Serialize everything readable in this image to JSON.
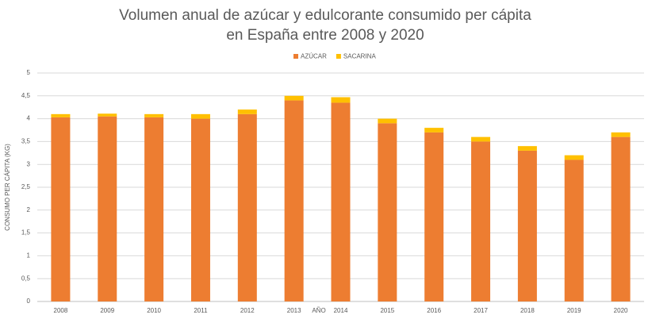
{
  "chart_data": {
    "type": "stacked-bar",
    "title": [
      "Volumen anual de azúcar y edulcorante consumido per cápita",
      "en España entre 2008 y 2020"
    ],
    "x_label": "AÑO",
    "y_label": "CONSUMO PER CÁPITA (KG)",
    "categories": [
      "2008",
      "2009",
      "2010",
      "2011",
      "2012",
      "2013",
      "2014",
      "2015",
      "2016",
      "2017",
      "2018",
      "2019",
      "2020"
    ],
    "series": [
      {
        "name": "AZÚCAR",
        "color": "#ed7d31",
        "values": [
          4.03,
          4.05,
          4.03,
          4.0,
          4.1,
          4.4,
          4.35,
          3.9,
          3.7,
          3.5,
          3.3,
          3.1,
          3.6
        ]
      },
      {
        "name": "SACARINA",
        "color": "#ffc000",
        "values": [
          0.07,
          0.06,
          0.07,
          0.1,
          0.1,
          0.1,
          0.12,
          0.1,
          0.1,
          0.1,
          0.1,
          0.1,
          0.1
        ]
      }
    ],
    "ylim": [
      0,
      5
    ],
    "yticks": [
      0,
      {
        "value": 0.5,
        "label": "0,5"
      },
      1,
      {
        "value": 1.5,
        "label": "1,5"
      },
      2,
      {
        "value": 2.5,
        "label": "2,5"
      },
      3,
      {
        "value": 3.5,
        "label": "3,5"
      },
      4,
      {
        "value": 4.5,
        "label": "4,5"
      },
      5
    ],
    "grid": true,
    "legend": "top"
  }
}
